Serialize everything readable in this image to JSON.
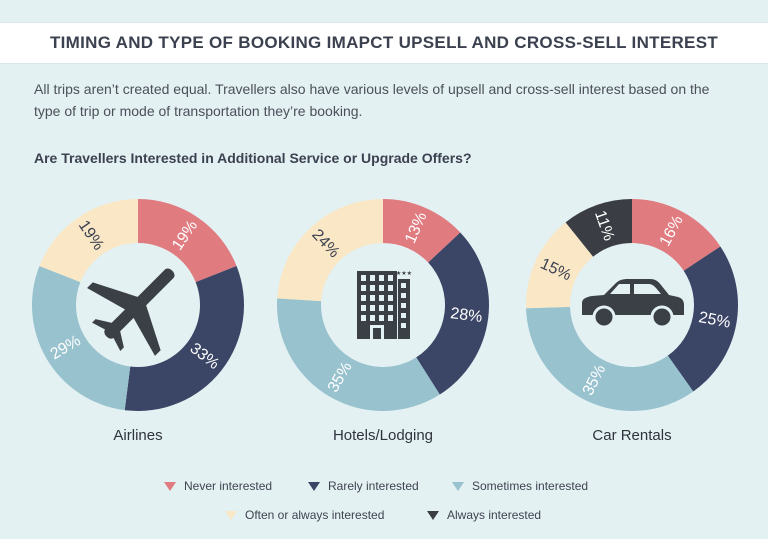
{
  "title": "TIMING AND TYPE OF BOOKING IMAPCT UPSELL AND CROSS-SELL INTEREST",
  "intro": "All trips aren’t created equal. Travellers also have various levels of upsell and cross-sell interest based on the type of trip or mode of transportation they’re booking.",
  "question": "Are Travellers Interested in Additional Service or Upgrade Offers?",
  "colors": {
    "never": "#e07b80",
    "rarely": "#3b4566",
    "sometimes": "#98c2ce",
    "often": "#f9e7c6",
    "always": "#3a3d44",
    "icon": "#3b3f46"
  },
  "legend": {
    "never": "Never interested",
    "rarely": "Rarely interested",
    "sometimes": "Sometimes interested",
    "often": "Often or always interested",
    "always": "Always interested"
  },
  "chart_data": [
    {
      "type": "pie",
      "title": "Airlines",
      "icon": "airplane-icon",
      "slices": [
        {
          "key": "never",
          "label": "Never interested",
          "value": 19
        },
        {
          "key": "rarely",
          "label": "Rarely interested",
          "value": 33
        },
        {
          "key": "sometimes",
          "label": "Sometimes interested",
          "value": 29
        },
        {
          "key": "often",
          "label": "Often or always interested",
          "value": 19
        }
      ]
    },
    {
      "type": "pie",
      "title": "Hotels/Lodging",
      "icon": "hotel-icon",
      "slices": [
        {
          "key": "never",
          "label": "Never interested",
          "value": 13
        },
        {
          "key": "rarely",
          "label": "Rarely interested",
          "value": 28
        },
        {
          "key": "sometimes",
          "label": "Sometimes interested",
          "value": 35
        },
        {
          "key": "often",
          "label": "Often or always interested",
          "value": 24
        }
      ]
    },
    {
      "type": "pie",
      "title": "Car Rentals",
      "icon": "car-icon",
      "slices": [
        {
          "key": "never",
          "label": "Never interested",
          "value": 16
        },
        {
          "key": "rarely",
          "label": "Rarely interested",
          "value": 25
        },
        {
          "key": "sometimes",
          "label": "Sometimes interested",
          "value": 35
        },
        {
          "key": "often",
          "label": "Often or always interested",
          "value": 15
        },
        {
          "key": "always",
          "label": "Always interested",
          "value": 11
        }
      ]
    }
  ]
}
